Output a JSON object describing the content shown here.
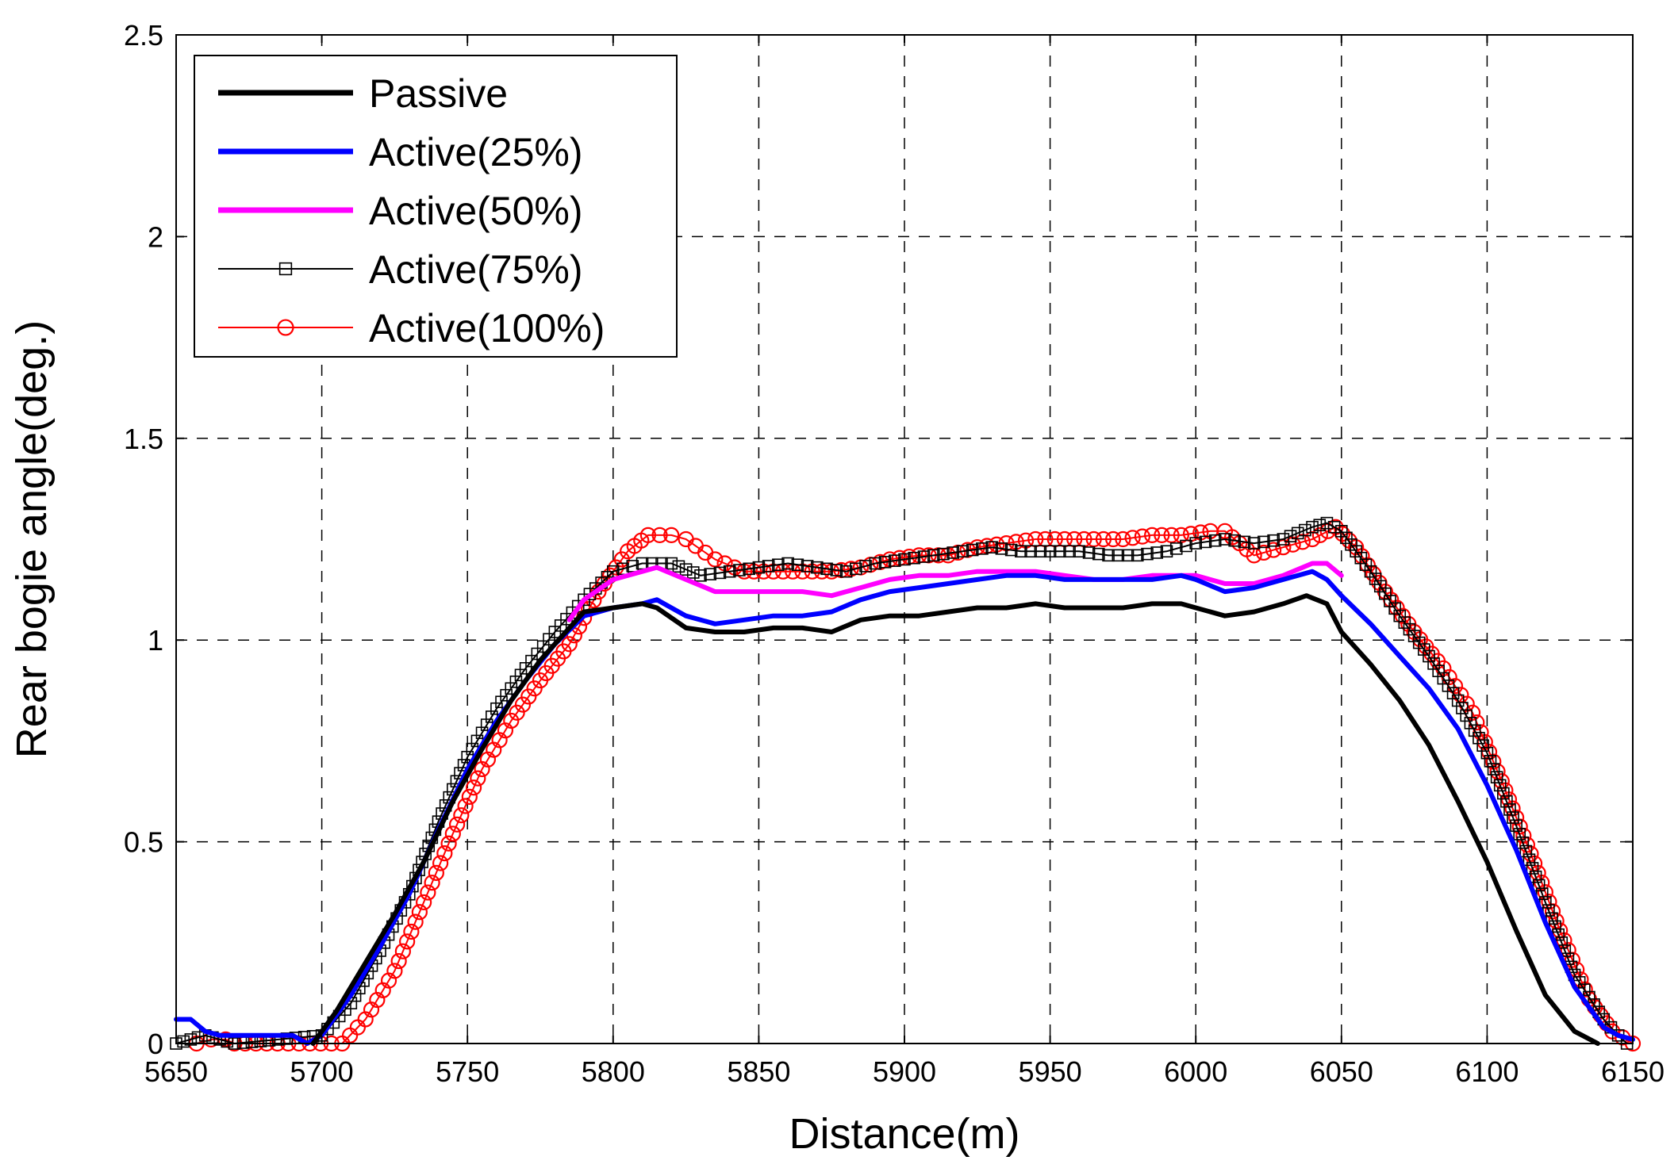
{
  "chart_data": {
    "type": "line",
    "xlabel": "Distance(m)",
    "ylabel": "Rear bogie angle(deg.)",
    "xlim": [
      5650,
      6150
    ],
    "ylim": [
      0,
      2.5
    ],
    "xticks": [
      5650,
      5700,
      5750,
      5800,
      5850,
      5900,
      5950,
      6000,
      6050,
      6100,
      6150
    ],
    "yticks": [
      0,
      0.5,
      1,
      1.5,
      2,
      2.5
    ],
    "ytick_labels": [
      "0",
      "0.5",
      "1",
      "1.5",
      "2",
      "2.5"
    ],
    "grid": true,
    "legend_position": "top-left",
    "series": [
      {
        "name": "Passive",
        "color": "#000000",
        "style": "solid-thick",
        "marker": "none",
        "x": [
          5697,
          5705,
          5715,
          5725,
          5735,
          5745,
          5755,
          5765,
          5775,
          5785,
          5790,
          5800,
          5810,
          5815,
          5825,
          5835,
          5845,
          5855,
          5865,
          5875,
          5885,
          5895,
          5905,
          5915,
          5925,
          5935,
          5945,
          5955,
          5965,
          5975,
          5985,
          5995,
          6000,
          6010,
          6020,
          6030,
          6038,
          6045,
          6050,
          6060,
          6070,
          6080,
          6090,
          6100,
          6110,
          6120,
          6130,
          6138
        ],
        "y": [
          0.0,
          0.08,
          0.2,
          0.32,
          0.45,
          0.6,
          0.73,
          0.85,
          0.95,
          1.03,
          1.07,
          1.08,
          1.09,
          1.08,
          1.03,
          1.02,
          1.02,
          1.03,
          1.03,
          1.02,
          1.05,
          1.06,
          1.06,
          1.07,
          1.08,
          1.08,
          1.09,
          1.08,
          1.08,
          1.08,
          1.09,
          1.09,
          1.08,
          1.06,
          1.07,
          1.09,
          1.11,
          1.09,
          1.02,
          0.94,
          0.85,
          0.74,
          0.6,
          0.45,
          0.28,
          0.12,
          0.03,
          0.0
        ]
      },
      {
        "name": "Active(25%)",
        "color": "#0000ff",
        "style": "solid-thick",
        "marker": "none",
        "x": [
          5650,
          5655,
          5660,
          5665,
          5670,
          5680,
          5690,
          5695,
          5700,
          5710,
          5720,
          5730,
          5740,
          5750,
          5760,
          5770,
          5780,
          5790,
          5800,
          5810,
          5815,
          5825,
          5835,
          5845,
          5855,
          5865,
          5875,
          5885,
          5895,
          5905,
          5915,
          5925,
          5935,
          5945,
          5955,
          5965,
          5975,
          5985,
          5995,
          6000,
          6010,
          6020,
          6030,
          6040,
          6045,
          6050,
          6060,
          6070,
          6080,
          6090,
          6100,
          6110,
          6120,
          6130,
          6140,
          6145,
          6150
        ],
        "y": [
          0.06,
          0.06,
          0.03,
          0.02,
          0.02,
          0.02,
          0.02,
          0.0,
          0.02,
          0.12,
          0.24,
          0.37,
          0.53,
          0.68,
          0.8,
          0.9,
          0.99,
          1.06,
          1.08,
          1.09,
          1.1,
          1.06,
          1.04,
          1.05,
          1.06,
          1.06,
          1.07,
          1.1,
          1.12,
          1.13,
          1.14,
          1.15,
          1.16,
          1.16,
          1.15,
          1.15,
          1.15,
          1.15,
          1.16,
          1.15,
          1.12,
          1.13,
          1.15,
          1.17,
          1.15,
          1.11,
          1.04,
          0.96,
          0.88,
          0.78,
          0.64,
          0.48,
          0.3,
          0.14,
          0.04,
          0.02,
          0.01
        ]
      },
      {
        "name": "Active(50%)",
        "color": "#ff00ff",
        "style": "solid-thick",
        "marker": "none",
        "x": [
          5785,
          5790,
          5800,
          5810,
          5815,
          5825,
          5835,
          5845,
          5855,
          5865,
          5875,
          5885,
          5895,
          5905,
          5915,
          5925,
          5935,
          5945,
          5955,
          5965,
          5975,
          5985,
          5995,
          6000,
          6010,
          6020,
          6030,
          6040,
          6045,
          6050
        ],
        "y": [
          1.05,
          1.1,
          1.15,
          1.17,
          1.18,
          1.15,
          1.12,
          1.12,
          1.12,
          1.12,
          1.11,
          1.13,
          1.15,
          1.16,
          1.16,
          1.17,
          1.17,
          1.17,
          1.16,
          1.15,
          1.15,
          1.16,
          1.16,
          1.16,
          1.14,
          1.14,
          1.16,
          1.19,
          1.19,
          1.16
        ]
      },
      {
        "name": "Active(75%)",
        "color": "#000000",
        "style": "solid-thin",
        "marker": "square",
        "x": [
          5650,
          5655,
          5660,
          5665,
          5670,
          5700,
          5710,
          5720,
          5730,
          5740,
          5750,
          5760,
          5770,
          5780,
          5790,
          5800,
          5810,
          5820,
          5830,
          5840,
          5850,
          5860,
          5870,
          5880,
          5890,
          5900,
          5910,
          5920,
          5930,
          5940,
          5950,
          5960,
          5970,
          5980,
          5990,
          6000,
          6010,
          6020,
          6030,
          6040,
          6045,
          6050,
          6060,
          6070,
          6080,
          6090,
          6100,
          6110,
          6120,
          6130,
          6140,
          6145,
          6148
        ],
        "y": [
          0.0,
          0.01,
          0.02,
          0.01,
          0.0,
          0.02,
          0.1,
          0.23,
          0.37,
          0.55,
          0.71,
          0.83,
          0.93,
          1.02,
          1.1,
          1.17,
          1.19,
          1.19,
          1.16,
          1.17,
          1.18,
          1.19,
          1.18,
          1.17,
          1.19,
          1.2,
          1.21,
          1.22,
          1.23,
          1.22,
          1.22,
          1.22,
          1.21,
          1.21,
          1.22,
          1.24,
          1.25,
          1.24,
          1.25,
          1.28,
          1.29,
          1.27,
          1.17,
          1.06,
          0.96,
          0.85,
          0.72,
          0.54,
          0.35,
          0.17,
          0.06,
          0.02,
          0.0
        ]
      },
      {
        "name": "Active(100%)",
        "color": "#ff0000",
        "style": "solid-thin",
        "marker": "circle",
        "x": [
          5657,
          5662,
          5667,
          5670,
          5707,
          5715,
          5725,
          5735,
          5745,
          5755,
          5765,
          5775,
          5785,
          5795,
          5805,
          5812,
          5820,
          5825,
          5835,
          5845,
          5855,
          5865,
          5875,
          5885,
          5895,
          5905,
          5915,
          5925,
          5935,
          5945,
          5955,
          5965,
          5975,
          5985,
          5995,
          6005,
          6010,
          6020,
          6030,
          6040,
          6048,
          6055,
          6065,
          6075,
          6085,
          6095,
          6105,
          6115,
          6125,
          6135,
          6143,
          6150
        ],
        "y": [
          0.0,
          0.01,
          0.01,
          0.0,
          0.0,
          0.06,
          0.18,
          0.35,
          0.52,
          0.68,
          0.8,
          0.9,
          0.99,
          1.12,
          1.22,
          1.26,
          1.26,
          1.25,
          1.2,
          1.17,
          1.17,
          1.17,
          1.17,
          1.18,
          1.2,
          1.21,
          1.21,
          1.23,
          1.24,
          1.25,
          1.25,
          1.25,
          1.25,
          1.26,
          1.26,
          1.27,
          1.27,
          1.21,
          1.23,
          1.25,
          1.28,
          1.23,
          1.12,
          1.02,
          0.93,
          0.82,
          0.65,
          0.47,
          0.28,
          0.11,
          0.03,
          0.0
        ]
      }
    ]
  }
}
